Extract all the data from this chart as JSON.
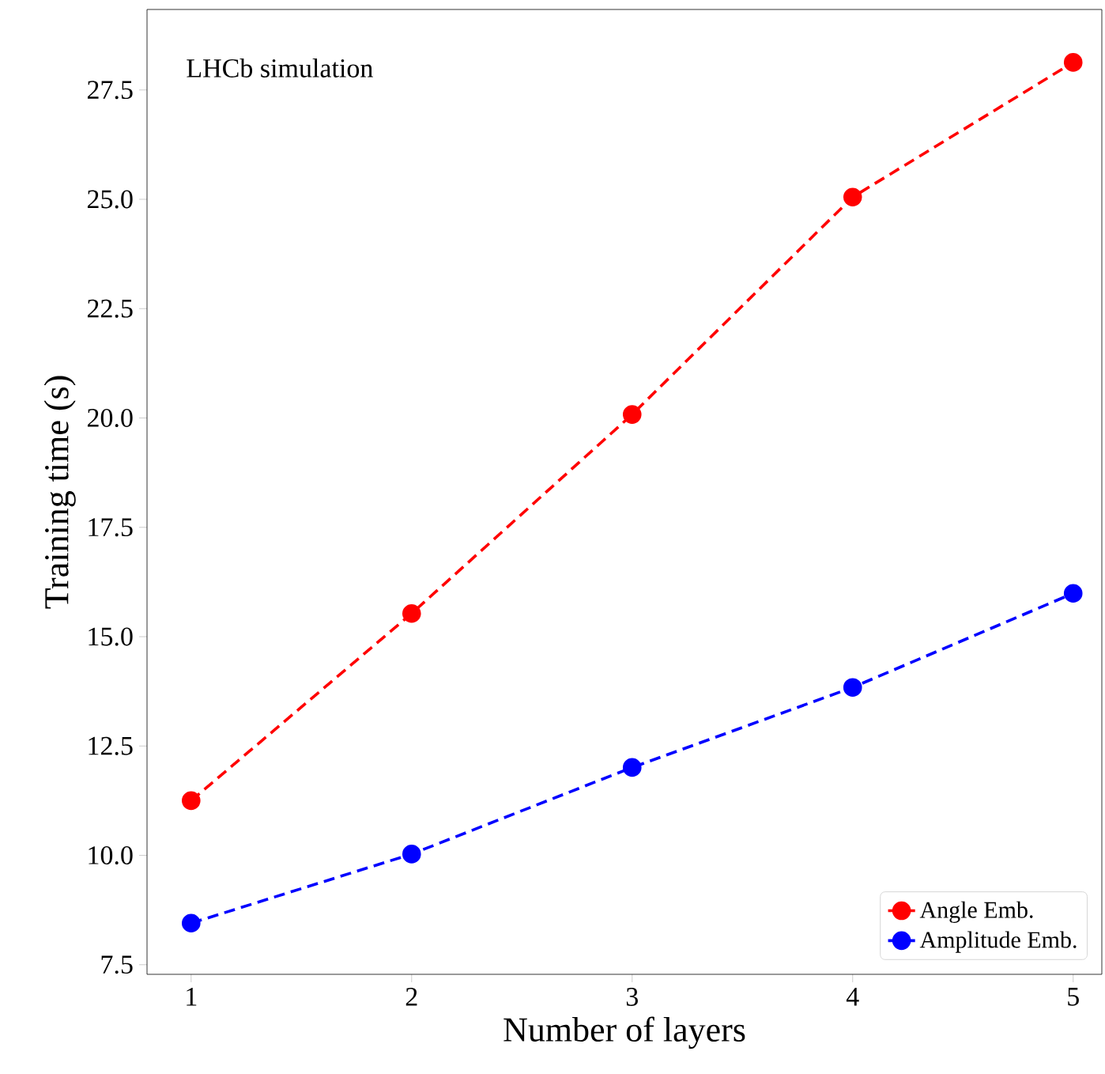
{
  "chart_data": {
    "type": "line",
    "xlabel": "Number of layers",
    "ylabel": "Training time (s)",
    "x": [
      1,
      2,
      3,
      4,
      5
    ],
    "series": [
      {
        "name": "Angle Emb.",
        "color": "#ff0000",
        "values": [
          11.25,
          15.53,
          20.08,
          25.05,
          28.13
        ]
      },
      {
        "name": "Amplitude Emb.",
        "color": "#0000ff",
        "values": [
          8.45,
          10.03,
          12.01,
          13.84,
          15.99
        ]
      }
    ],
    "xlim": [
      0.8,
      5.13
    ],
    "ylim": [
      7.28,
      29.34
    ],
    "xticks": [
      1,
      2,
      3,
      4,
      5
    ],
    "yticks": [
      {
        "value": 7.5,
        "label": "7.5"
      },
      {
        "value": 10.0,
        "label": "10.0"
      },
      {
        "value": 12.5,
        "label": "12.5"
      },
      {
        "value": 15.0,
        "label": "15.0"
      },
      {
        "value": 17.5,
        "label": "17.5"
      },
      {
        "value": 20.0,
        "label": "20.0"
      },
      {
        "value": 22.5,
        "label": "22.5"
      },
      {
        "value": 25.0,
        "label": "25.0"
      },
      {
        "value": 27.5,
        "label": "27.5"
      }
    ],
    "annotations": [
      "LHCb simulation"
    ],
    "legend": "bottom right",
    "grid": false,
    "marker": "circle",
    "line_style": "dashed"
  }
}
